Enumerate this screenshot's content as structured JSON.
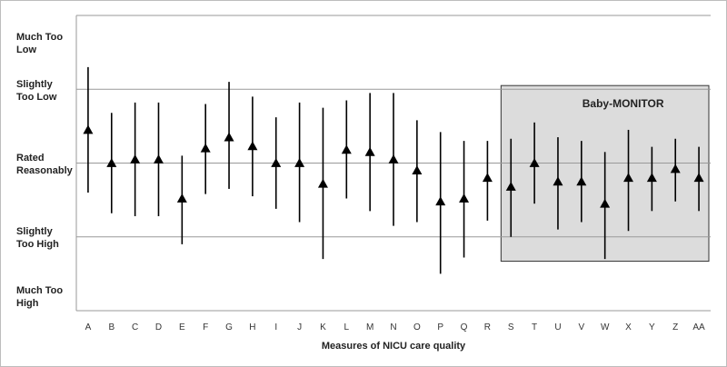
{
  "chart_data": {
    "type": "scatter",
    "title": "",
    "xlabel": "Measures of NICU care quality",
    "ylabel": "",
    "y_levels": [
      {
        "value": 2,
        "label": [
          "Much Too",
          "Low"
        ]
      },
      {
        "value": 1,
        "label": [
          "Slightly",
          "Too Low"
        ]
      },
      {
        "value": 0,
        "label": [
          "Rated",
          "Reasonably"
        ]
      },
      {
        "value": -1,
        "label": [
          "Slightly",
          "Too High"
        ]
      },
      {
        "value": -2,
        "label": [
          "Much Too",
          "High"
        ]
      }
    ],
    "ylim": [
      -2,
      2
    ],
    "grid": true,
    "categories": [
      "A",
      "B",
      "C",
      "D",
      "E",
      "F",
      "G",
      "H",
      "I",
      "J",
      "K",
      "L",
      "M",
      "N",
      "O",
      "P",
      "Q",
      "R",
      "S",
      "T",
      "U",
      "V",
      "W",
      "X",
      "Y",
      "Z",
      "AA"
    ],
    "points": [
      {
        "x": "A",
        "y": 0.45,
        "low": -0.4,
        "high": 1.3
      },
      {
        "x": "B",
        "y": 0.0,
        "low": -0.68,
        "high": 0.68
      },
      {
        "x": "C",
        "y": 0.05,
        "low": -0.72,
        "high": 0.82
      },
      {
        "x": "D",
        "y": 0.05,
        "low": -0.72,
        "high": 0.82
      },
      {
        "x": "E",
        "y": -0.48,
        "low": -1.1,
        "high": 0.1
      },
      {
        "x": "F",
        "y": 0.2,
        "low": -0.42,
        "high": 0.8
      },
      {
        "x": "G",
        "y": 0.35,
        "low": -0.35,
        "high": 1.1
      },
      {
        "x": "H",
        "y": 0.23,
        "low": -0.45,
        "high": 0.9
      },
      {
        "x": "I",
        "y": 0.0,
        "low": -0.62,
        "high": 0.62
      },
      {
        "x": "J",
        "y": 0.0,
        "low": -0.8,
        "high": 0.82
      },
      {
        "x": "K",
        "y": -0.28,
        "low": -1.3,
        "high": 0.75
      },
      {
        "x": "L",
        "y": 0.18,
        "low": -0.48,
        "high": 0.85
      },
      {
        "x": "M",
        "y": 0.15,
        "low": -0.65,
        "high": 0.95
      },
      {
        "x": "N",
        "y": 0.05,
        "low": -0.85,
        "high": 0.95
      },
      {
        "x": "O",
        "y": -0.1,
        "low": -0.8,
        "high": 0.58
      },
      {
        "x": "P",
        "y": -0.52,
        "low": -1.5,
        "high": 0.42
      },
      {
        "x": "Q",
        "y": -0.48,
        "low": -1.28,
        "high": 0.3
      },
      {
        "x": "R",
        "y": -0.2,
        "low": -0.78,
        "high": 0.3
      },
      {
        "x": "S",
        "y": -0.32,
        "low": -1.0,
        "high": 0.33
      },
      {
        "x": "T",
        "y": 0.0,
        "low": -0.55,
        "high": 0.55
      },
      {
        "x": "U",
        "y": -0.25,
        "low": -0.9,
        "high": 0.35
      },
      {
        "x": "V",
        "y": -0.25,
        "low": -0.8,
        "high": 0.3
      },
      {
        "x": "W",
        "y": -0.55,
        "low": -1.3,
        "high": 0.15
      },
      {
        "x": "X",
        "y": -0.2,
        "low": -0.92,
        "high": 0.45
      },
      {
        "x": "Y",
        "y": -0.2,
        "low": -0.65,
        "high": 0.22
      },
      {
        "x": "Z",
        "y": -0.08,
        "low": -0.52,
        "high": 0.33
      },
      {
        "x": "AA",
        "y": -0.2,
        "low": -0.65,
        "high": 0.22
      }
    ],
    "highlight_box": {
      "label": "Baby-MONITOR",
      "from": "S",
      "to": "AA",
      "y_top": 1.05,
      "y_bottom": -1.33,
      "fill": "#dcdcdc"
    },
    "colors": {
      "line": "#000000",
      "grid": "#999999",
      "box_border": "#333333"
    }
  }
}
